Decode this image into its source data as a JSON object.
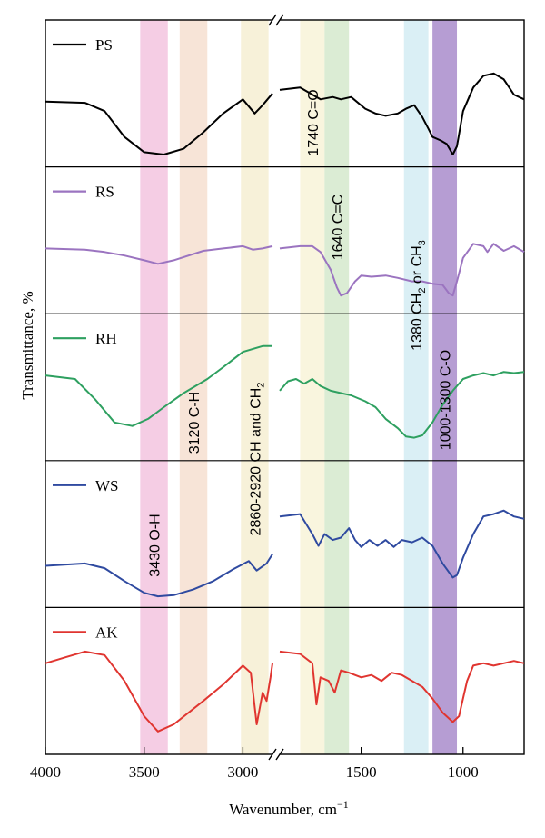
{
  "chart_data": {
    "type": "line",
    "title": "",
    "xlabel": "Wavenumber, cm",
    "xlabel_sup": "−1",
    "ylabel": "Transmittance, %",
    "x_reversed": true,
    "x_break": {
      "from": 2850,
      "to": 1900
    },
    "x_segments": [
      [
        4000,
        2850
      ],
      [
        1900,
        700
      ]
    ],
    "x_ticks": [
      "4000",
      "3500",
      "3000",
      "1500",
      "1000"
    ],
    "x_tick_values": [
      4000,
      3500,
      3000,
      1500,
      1000
    ],
    "bands": [
      {
        "range": [
          3520,
          3380
        ],
        "color": "#f3c4df",
        "label": "3430 O-H"
      },
      {
        "range": [
          3320,
          3180
        ],
        "color": "#f6dfd0",
        "label": "3120 C-H"
      },
      {
        "range": [
          3010,
          2870
        ],
        "color": "#f6eed2",
        "label": "2860-2920 CH and CH",
        "label_sub": "2",
        "label_suffix": ""
      },
      {
        "range": [
          1800,
          1680
        ],
        "color": "#f8f3d8",
        "label": "1740 C=O"
      },
      {
        "range": [
          1680,
          1560
        ],
        "color": "#d5e9cd",
        "label": "1640 C=C"
      },
      {
        "range": [
          1290,
          1170
        ],
        "color": "#d4ecf3",
        "label": "1380 CH",
        "label_sub": "2",
        "label_suffix": " or CH",
        "label_sub2": "3"
      },
      {
        "range": [
          1150,
          1030
        ],
        "color": "#a98ccb",
        "label": "1000-1300 C-O"
      }
    ],
    "series": [
      {
        "name": "PS",
        "color": "#000000",
        "left": [
          [
            4000,
            0.52
          ],
          [
            3800,
            0.53
          ],
          [
            3700,
            0.6
          ],
          [
            3600,
            0.82
          ],
          [
            3500,
            0.95
          ],
          [
            3400,
            0.97
          ],
          [
            3300,
            0.92
          ],
          [
            3200,
            0.78
          ],
          [
            3100,
            0.62
          ],
          [
            3000,
            0.5
          ],
          [
            2940,
            0.62
          ],
          [
            2900,
            0.55
          ],
          [
            2850,
            0.45
          ]
        ],
        "right": [
          [
            1900,
            0.42
          ],
          [
            1800,
            0.4
          ],
          [
            1700,
            0.5
          ],
          [
            1640,
            0.48
          ],
          [
            1600,
            0.5
          ],
          [
            1550,
            0.48
          ],
          [
            1480,
            0.58
          ],
          [
            1430,
            0.62
          ],
          [
            1380,
            0.64
          ],
          [
            1320,
            0.62
          ],
          [
            1280,
            0.58
          ],
          [
            1240,
            0.55
          ],
          [
            1200,
            0.65
          ],
          [
            1170,
            0.75
          ],
          [
            1150,
            0.82
          ],
          [
            1110,
            0.85
          ],
          [
            1080,
            0.88
          ],
          [
            1050,
            0.97
          ],
          [
            1030,
            0.9
          ],
          [
            1000,
            0.6
          ],
          [
            950,
            0.4
          ],
          [
            900,
            0.3
          ],
          [
            850,
            0.28
          ],
          [
            800,
            0.33
          ],
          [
            750,
            0.46
          ],
          [
            700,
            0.5
          ]
        ]
      },
      {
        "name": "RS",
        "color": "#9b74c0",
        "left": [
          [
            4000,
            0.52
          ],
          [
            3800,
            0.53
          ],
          [
            3700,
            0.55
          ],
          [
            3600,
            0.58
          ],
          [
            3500,
            0.62
          ],
          [
            3430,
            0.65
          ],
          [
            3350,
            0.62
          ],
          [
            3200,
            0.54
          ],
          [
            3100,
            0.52
          ],
          [
            3000,
            0.5
          ],
          [
            2950,
            0.53
          ],
          [
            2900,
            0.52
          ],
          [
            2850,
            0.5
          ]
        ],
        "right": [
          [
            1900,
            0.52
          ],
          [
            1800,
            0.5
          ],
          [
            1740,
            0.5
          ],
          [
            1700,
            0.55
          ],
          [
            1650,
            0.7
          ],
          [
            1620,
            0.85
          ],
          [
            1600,
            0.92
          ],
          [
            1570,
            0.9
          ],
          [
            1530,
            0.8
          ],
          [
            1500,
            0.75
          ],
          [
            1450,
            0.76
          ],
          [
            1380,
            0.75
          ],
          [
            1320,
            0.77
          ],
          [
            1250,
            0.8
          ],
          [
            1200,
            0.8
          ],
          [
            1150,
            0.82
          ],
          [
            1100,
            0.83
          ],
          [
            1070,
            0.9
          ],
          [
            1050,
            0.92
          ],
          [
            1030,
            0.8
          ],
          [
            1000,
            0.6
          ],
          [
            950,
            0.48
          ],
          [
            900,
            0.5
          ],
          [
            880,
            0.55
          ],
          [
            850,
            0.48
          ],
          [
            800,
            0.54
          ],
          [
            750,
            0.5
          ],
          [
            700,
            0.55
          ]
        ]
      },
      {
        "name": "RH",
        "color": "#2ea060",
        "left": [
          [
            4000,
            0.35
          ],
          [
            3850,
            0.38
          ],
          [
            3750,
            0.55
          ],
          [
            3650,
            0.75
          ],
          [
            3560,
            0.78
          ],
          [
            3480,
            0.72
          ],
          [
            3400,
            0.62
          ],
          [
            3300,
            0.5
          ],
          [
            3180,
            0.38
          ],
          [
            3100,
            0.28
          ],
          [
            3000,
            0.15
          ],
          [
            2900,
            0.1
          ],
          [
            2850,
            0.1
          ]
        ],
        "right": [
          [
            1900,
            0.48
          ],
          [
            1860,
            0.4
          ],
          [
            1820,
            0.38
          ],
          [
            1780,
            0.42
          ],
          [
            1740,
            0.38
          ],
          [
            1700,
            0.44
          ],
          [
            1650,
            0.48
          ],
          [
            1600,
            0.5
          ],
          [
            1550,
            0.52
          ],
          [
            1480,
            0.57
          ],
          [
            1430,
            0.62
          ],
          [
            1380,
            0.72
          ],
          [
            1320,
            0.8
          ],
          [
            1280,
            0.87
          ],
          [
            1240,
            0.88
          ],
          [
            1200,
            0.86
          ],
          [
            1150,
            0.75
          ],
          [
            1100,
            0.6
          ],
          [
            1050,
            0.48
          ],
          [
            1000,
            0.38
          ],
          [
            950,
            0.35
          ],
          [
            900,
            0.33
          ],
          [
            850,
            0.35
          ],
          [
            800,
            0.32
          ],
          [
            750,
            0.33
          ],
          [
            700,
            0.32
          ]
        ]
      },
      {
        "name": "WS",
        "color": "#2f4aa0",
        "left": [
          [
            4000,
            0.72
          ],
          [
            3800,
            0.7
          ],
          [
            3700,
            0.74
          ],
          [
            3600,
            0.85
          ],
          [
            3500,
            0.95
          ],
          [
            3430,
            0.98
          ],
          [
            3350,
            0.97
          ],
          [
            3250,
            0.92
          ],
          [
            3150,
            0.85
          ],
          [
            3050,
            0.75
          ],
          [
            2970,
            0.68
          ],
          [
            2930,
            0.76
          ],
          [
            2880,
            0.7
          ],
          [
            2850,
            0.62
          ]
        ],
        "right": [
          [
            1900,
            0.3
          ],
          [
            1800,
            0.28
          ],
          [
            1740,
            0.45
          ],
          [
            1710,
            0.55
          ],
          [
            1680,
            0.45
          ],
          [
            1640,
            0.5
          ],
          [
            1600,
            0.48
          ],
          [
            1560,
            0.4
          ],
          [
            1530,
            0.5
          ],
          [
            1500,
            0.56
          ],
          [
            1460,
            0.5
          ],
          [
            1420,
            0.55
          ],
          [
            1380,
            0.5
          ],
          [
            1340,
            0.56
          ],
          [
            1300,
            0.5
          ],
          [
            1250,
            0.52
          ],
          [
            1200,
            0.48
          ],
          [
            1150,
            0.55
          ],
          [
            1100,
            0.7
          ],
          [
            1050,
            0.82
          ],
          [
            1030,
            0.8
          ],
          [
            1000,
            0.65
          ],
          [
            950,
            0.45
          ],
          [
            900,
            0.3
          ],
          [
            850,
            0.28
          ],
          [
            800,
            0.25
          ],
          [
            750,
            0.3
          ],
          [
            700,
            0.32
          ]
        ]
      },
      {
        "name": "AK",
        "color": "#e03530",
        "left": [
          [
            4000,
            0.3
          ],
          [
            3900,
            0.25
          ],
          [
            3800,
            0.2
          ],
          [
            3700,
            0.23
          ],
          [
            3600,
            0.45
          ],
          [
            3500,
            0.75
          ],
          [
            3430,
            0.88
          ],
          [
            3350,
            0.82
          ],
          [
            3200,
            0.62
          ],
          [
            3100,
            0.48
          ],
          [
            3000,
            0.32
          ],
          [
            2960,
            0.38
          ],
          [
            2930,
            0.82
          ],
          [
            2900,
            0.55
          ],
          [
            2880,
            0.62
          ],
          [
            2860,
            0.42
          ],
          [
            2850,
            0.3
          ]
        ],
        "right": [
          [
            1900,
            0.2
          ],
          [
            1800,
            0.22
          ],
          [
            1740,
            0.3
          ],
          [
            1720,
            0.65
          ],
          [
            1700,
            0.42
          ],
          [
            1660,
            0.45
          ],
          [
            1630,
            0.55
          ],
          [
            1600,
            0.36
          ],
          [
            1560,
            0.38
          ],
          [
            1500,
            0.42
          ],
          [
            1450,
            0.4
          ],
          [
            1400,
            0.45
          ],
          [
            1350,
            0.38
          ],
          [
            1300,
            0.4
          ],
          [
            1250,
            0.45
          ],
          [
            1200,
            0.5
          ],
          [
            1150,
            0.6
          ],
          [
            1100,
            0.72
          ],
          [
            1050,
            0.8
          ],
          [
            1020,
            0.75
          ],
          [
            980,
            0.45
          ],
          [
            950,
            0.32
          ],
          [
            900,
            0.3
          ],
          [
            850,
            0.32
          ],
          [
            800,
            0.3
          ],
          [
            750,
            0.28
          ],
          [
            700,
            0.3
          ]
        ]
      }
    ]
  }
}
